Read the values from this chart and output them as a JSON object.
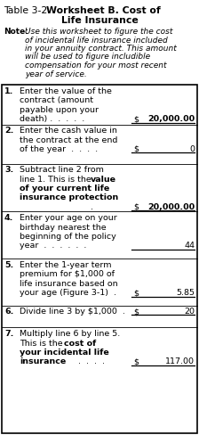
{
  "bg_color": "#ffffff",
  "title_line1_normal": "Table 3-2.  ",
  "title_line1_bold": "Worksheet B. Cost of",
  "title_line2_bold": "Life Insurance",
  "note_bold": "Note:",
  "note_italic": "Use this worksheet to figure the cost\n    of incidental life insurance included\n    in your annuity contract. This amount\n    will be used to figure includible\n    compensation for your most recent\n    year of service.",
  "rows": [
    {
      "num": "1.",
      "lines": [
        {
          "text": "Enter the value of the",
          "bold": false
        },
        {
          "text": "contract (amount",
          "bold": false
        },
        {
          "text": "payable upon your",
          "bold": false
        },
        {
          "text": "death) .  .  .  .  .",
          "bold": false
        }
      ],
      "dollar": true,
      "value": "20,000.00",
      "value_bold": true
    },
    {
      "num": "2.",
      "lines": [
        {
          "text": "Enter the cash value in",
          "bold": false
        },
        {
          "text": "the contract at the end",
          "bold": false
        },
        {
          "text": "of the year  .  .  .  .",
          "bold": false
        }
      ],
      "dollar": true,
      "value": "0",
      "value_bold": false
    },
    {
      "num": "3.",
      "lines": [
        {
          "text": "Subtract line 2 from",
          "bold": false
        },
        {
          "text": "line 1. This is the ",
          "bold": false,
          "bold_append": "value"
        },
        {
          "text": "of your current life",
          "bold": true
        },
        {
          "text": "insurance protection",
          "bold": true
        },
        {
          "text": " .",
          "bold": false
        }
      ],
      "dollar": true,
      "value": "20,000.00",
      "value_bold": true
    },
    {
      "num": "4.",
      "lines": [
        {
          "text": "Enter your age on your",
          "bold": false
        },
        {
          "text": "birthday nearest the",
          "bold": false
        },
        {
          "text": "beginning of the policy",
          "bold": false
        },
        {
          "text": "year  .  .  .  .  .  .",
          "bold": false
        }
      ],
      "dollar": false,
      "value": "44",
      "value_bold": false
    },
    {
      "num": "5.",
      "lines": [
        {
          "text": "Enter the 1-year term",
          "bold": false
        },
        {
          "text": "premium for $1,000 of",
          "bold": false
        },
        {
          "text": "life insurance based on",
          "bold": false
        },
        {
          "text": "your age (Figure 3-1)  .",
          "bold": false
        }
      ],
      "dollar": true,
      "value": "5.85",
      "value_bold": false
    },
    {
      "num": "6.",
      "lines": [
        {
          "text": "Divide line 3 by $1,000  .",
          "bold": false
        }
      ],
      "dollar": true,
      "value": "20",
      "value_bold": false
    },
    {
      "num": "7.",
      "lines": [
        {
          "text": "Multiply line 6 by line 5.",
          "bold": false
        },
        {
          "text": "This is the ",
          "bold": false,
          "bold_append": "cost of"
        },
        {
          "text": "your incidental life",
          "bold": true
        },
        {
          "text": "insurance",
          "bold": true
        },
        {
          "text": "  .  .  .  .",
          "bold": false,
          "indent": true
        }
      ],
      "dollar": true,
      "value": "117.00",
      "value_bold": false
    }
  ]
}
